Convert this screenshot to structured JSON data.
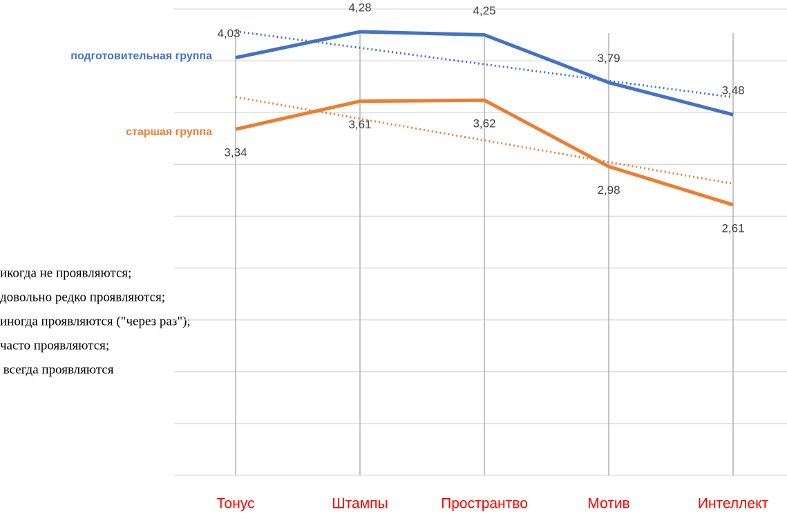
{
  "chart_data": {
    "type": "line",
    "categories": [
      "Тонус",
      "Штампы",
      "Пространтво",
      "Мотив",
      "Интеллект"
    ],
    "series": [
      {
        "name": "подготовительная группа",
        "color": "#4472c4",
        "values": [
          4.03,
          4.28,
          4.25,
          3.79,
          3.48
        ],
        "value_labels": [
          "4,03",
          "4,28",
          "4,25",
          "3,79",
          "3,48"
        ]
      },
      {
        "name": "старшая группа",
        "color": "#ed7d31",
        "values": [
          3.34,
          3.61,
          3.62,
          2.98,
          2.61
        ],
        "value_labels": [
          "3,34",
          "3,61",
          "3,62",
          "2,98",
          "2,61"
        ]
      }
    ],
    "ylim": [
      0,
      4.5
    ],
    "yticks": [
      0,
      0.5,
      1,
      1.5,
      2,
      2.5,
      3,
      3.5,
      4,
      4.5
    ],
    "grid": true,
    "trendline": true,
    "category_color": "#ff0000"
  },
  "background_text": [
    "икогда не проявляются;",
    "довольно редко проявляются;",
    "иногда проявляются (\"через раз\");",
    "часто проявляются;",
    " всегда проявляются"
  ]
}
